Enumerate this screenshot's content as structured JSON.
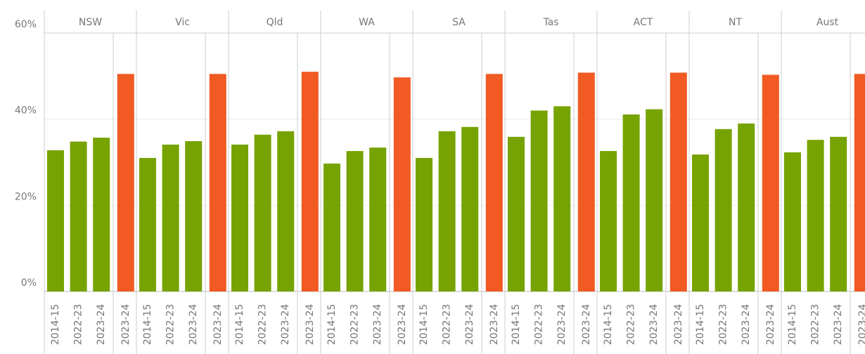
{
  "chart_data": {
    "type": "bar",
    "categories": [
      "2014-15",
      "2022-23",
      "2023-24",
      "2023-24"
    ],
    "colors": [
      "#77a300",
      "#77a300",
      "#77a300",
      "#f15a22"
    ],
    "panels": [
      {
        "name": "NSW",
        "values": [
          32.8,
          34.8,
          35.7,
          50.5
        ]
      },
      {
        "name": "Vic",
        "values": [
          31.0,
          34.1,
          34.9,
          50.5
        ]
      },
      {
        "name": "Qld",
        "values": [
          34.1,
          36.4,
          37.2,
          51.0
        ]
      },
      {
        "name": "WA",
        "values": [
          29.7,
          32.6,
          33.4,
          49.7
        ]
      },
      {
        "name": "SA",
        "values": [
          31.0,
          37.2,
          38.2,
          50.5
        ]
      },
      {
        "name": "Tas",
        "values": [
          35.9,
          42.0,
          43.0,
          50.8
        ]
      },
      {
        "name": "ACT",
        "values": [
          32.6,
          41.1,
          42.3,
          50.8
        ]
      },
      {
        "name": "NT",
        "values": [
          31.8,
          37.7,
          39.0,
          50.3
        ]
      },
      {
        "name": "Aust",
        "values": [
          32.3,
          35.2,
          35.9,
          50.5
        ]
      }
    ],
    "ylim": [
      0,
      60
    ],
    "yticks": [
      {
        "value": 0,
        "label": "0%"
      },
      {
        "value": 20,
        "label": "20%"
      },
      {
        "value": 40,
        "label": "40%"
      },
      {
        "value": 60,
        "label": "60%"
      }
    ],
    "grid": true
  }
}
